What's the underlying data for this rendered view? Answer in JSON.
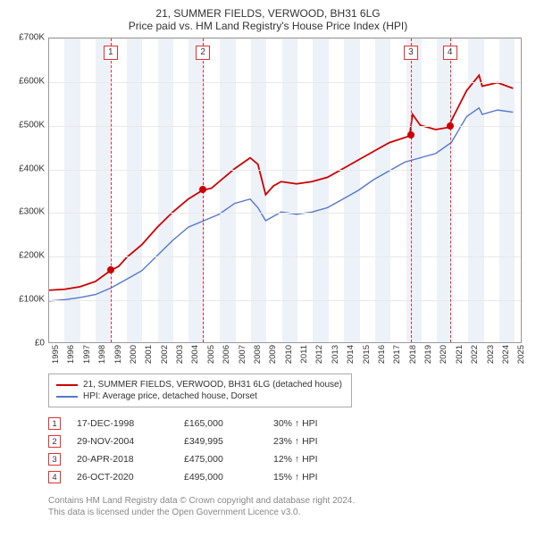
{
  "title_line1": "21, SUMMER FIELDS, VERWOOD, BH31 6LG",
  "title_line2": "Price paid vs. HM Land Registry's House Price Index (HPI)",
  "chart": {
    "type": "line",
    "xlim": [
      1995,
      2025.5
    ],
    "ylim": [
      0,
      700000
    ],
    "ytick_step": 100000,
    "ytick_labels": [
      "£0",
      "£100K",
      "£200K",
      "£300K",
      "£400K",
      "£500K",
      "£600K",
      "£700K"
    ],
    "xticks": [
      1995,
      1996,
      1997,
      1998,
      1999,
      2000,
      2001,
      2002,
      2003,
      2004,
      2005,
      2006,
      2007,
      2008,
      2009,
      2010,
      2011,
      2012,
      2013,
      2014,
      2015,
      2016,
      2017,
      2018,
      2019,
      2020,
      2021,
      2022,
      2023,
      2024,
      2025
    ],
    "background_color": "#ffffff",
    "grid_color": "#e8e8e8",
    "alt_band_color": "#edf2f9",
    "marker_line_color": "#d33333",
    "series": [
      {
        "name": "property",
        "label": "21, SUMMER FIELDS, VERWOOD, BH31 6LG (detached house)",
        "color": "#cc0000",
        "width": 1.8,
        "points": [
          [
            1995,
            120000
          ],
          [
            1996,
            122000
          ],
          [
            1997,
            128000
          ],
          [
            1998,
            140000
          ],
          [
            1998.96,
            165000
          ],
          [
            1999.5,
            175000
          ],
          [
            2000,
            195000
          ],
          [
            2001,
            225000
          ],
          [
            2002,
            265000
          ],
          [
            2003,
            300000
          ],
          [
            2004,
            330000
          ],
          [
            2004.91,
            349995
          ],
          [
            2005.5,
            355000
          ],
          [
            2006,
            370000
          ],
          [
            2007,
            400000
          ],
          [
            2008,
            425000
          ],
          [
            2008.5,
            410000
          ],
          [
            2009,
            340000
          ],
          [
            2009.5,
            360000
          ],
          [
            2010,
            370000
          ],
          [
            2011,
            365000
          ],
          [
            2012,
            370000
          ],
          [
            2013,
            380000
          ],
          [
            2014,
            400000
          ],
          [
            2015,
            420000
          ],
          [
            2016,
            440000
          ],
          [
            2017,
            460000
          ],
          [
            2018.3,
            475000
          ],
          [
            2018.5,
            525000
          ],
          [
            2019,
            500000
          ],
          [
            2020,
            490000
          ],
          [
            2020.82,
            495000
          ],
          [
            2021,
            510000
          ],
          [
            2022,
            580000
          ],
          [
            2022.8,
            615000
          ],
          [
            2023,
            590000
          ],
          [
            2024,
            598000
          ],
          [
            2025,
            585000
          ]
        ]
      },
      {
        "name": "hpi",
        "label": "HPI: Average price, detached house, Dorset",
        "color": "#5577cc",
        "width": 1.4,
        "points": [
          [
            1995,
            95000
          ],
          [
            1996,
            98000
          ],
          [
            1997,
            103000
          ],
          [
            1998,
            110000
          ],
          [
            1999,
            125000
          ],
          [
            2000,
            145000
          ],
          [
            2001,
            165000
          ],
          [
            2002,
            200000
          ],
          [
            2003,
            235000
          ],
          [
            2004,
            265000
          ],
          [
            2005,
            280000
          ],
          [
            2006,
            295000
          ],
          [
            2007,
            320000
          ],
          [
            2008,
            330000
          ],
          [
            2008.5,
            310000
          ],
          [
            2009,
            280000
          ],
          [
            2010,
            300000
          ],
          [
            2011,
            295000
          ],
          [
            2012,
            300000
          ],
          [
            2013,
            310000
          ],
          [
            2014,
            330000
          ],
          [
            2015,
            350000
          ],
          [
            2016,
            375000
          ],
          [
            2017,
            395000
          ],
          [
            2018,
            415000
          ],
          [
            2019,
            425000
          ],
          [
            2020,
            435000
          ],
          [
            2021,
            460000
          ],
          [
            2022,
            520000
          ],
          [
            2022.8,
            540000
          ],
          [
            2023,
            525000
          ],
          [
            2024,
            535000
          ],
          [
            2025,
            530000
          ]
        ]
      }
    ],
    "event_markers": [
      {
        "num": "1",
        "x": 1998.96,
        "y": 165000,
        "color": "#cc0000"
      },
      {
        "num": "2",
        "x": 2004.91,
        "y": 349995,
        "color": "#cc0000"
      },
      {
        "num": "3",
        "x": 2018.3,
        "y": 475000,
        "color": "#cc0000"
      },
      {
        "num": "4",
        "x": 2020.82,
        "y": 495000,
        "color": "#cc0000"
      }
    ]
  },
  "legend": [
    {
      "color": "#cc0000",
      "label": "21, SUMMER FIELDS, VERWOOD, BH31 6LG (detached house)"
    },
    {
      "color": "#5577cc",
      "label": "HPI: Average price, detached house, Dorset"
    }
  ],
  "events": [
    {
      "num": "1",
      "date": "17-DEC-1998",
      "price": "£165,000",
      "pct": "30% ↑ HPI"
    },
    {
      "num": "2",
      "date": "29-NOV-2004",
      "price": "£349,995",
      "pct": "23% ↑ HPI"
    },
    {
      "num": "3",
      "date": "20-APR-2018",
      "price": "£475,000",
      "pct": "12% ↑ HPI"
    },
    {
      "num": "4",
      "date": "26-OCT-2020",
      "price": "£495,000",
      "pct": "15% ↑ HPI"
    }
  ],
  "footer_line1": "Contains HM Land Registry data © Crown copyright and database right 2024.",
  "footer_line2": "This data is licensed under the Open Government Licence v3.0."
}
